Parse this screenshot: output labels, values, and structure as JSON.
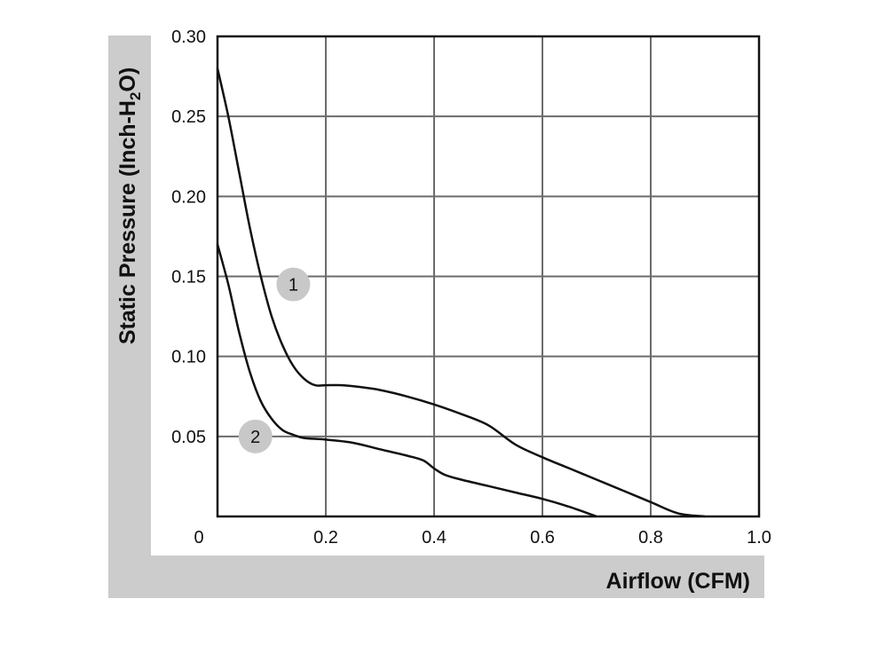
{
  "chart_data": {
    "type": "line",
    "xlabel": "Airflow (CFM)",
    "ylabel": {
      "prefix": "Static Pressure (Inch-H",
      "subscript": "2",
      "suffix": "O)"
    },
    "xlim": [
      0,
      1.0
    ],
    "ylim": [
      0,
      0.3
    ],
    "x_ticks": [
      {
        "value": 0,
        "label": "0"
      },
      {
        "value": 0.2,
        "label": "0.2"
      },
      {
        "value": 0.4,
        "label": "0.4"
      },
      {
        "value": 0.6,
        "label": "0.6"
      },
      {
        "value": 0.8,
        "label": "0.8"
      },
      {
        "value": 1.0,
        "label": "1.0"
      }
    ],
    "y_ticks": [
      {
        "value": 0.05,
        "label": "0.05"
      },
      {
        "value": 0.1,
        "label": "0.10"
      },
      {
        "value": 0.15,
        "label": "0.15"
      },
      {
        "value": 0.2,
        "label": "0.20"
      },
      {
        "value": 0.25,
        "label": "0.25"
      },
      {
        "value": 0.3,
        "label": "0.30"
      }
    ],
    "grid": true,
    "series": [
      {
        "name": "1",
        "marker_at": [
          0.14,
          0.145
        ],
        "points": [
          [
            0.0,
            0.28
          ],
          [
            0.02,
            0.25
          ],
          [
            0.04,
            0.215
          ],
          [
            0.06,
            0.18
          ],
          [
            0.08,
            0.15
          ],
          [
            0.1,
            0.125
          ],
          [
            0.12,
            0.107
          ],
          [
            0.14,
            0.094
          ],
          [
            0.16,
            0.086
          ],
          [
            0.18,
            0.082
          ],
          [
            0.2,
            0.082
          ],
          [
            0.23,
            0.082
          ],
          [
            0.26,
            0.081
          ],
          [
            0.3,
            0.079
          ],
          [
            0.35,
            0.075
          ],
          [
            0.4,
            0.07
          ],
          [
            0.45,
            0.064
          ],
          [
            0.5,
            0.057
          ],
          [
            0.55,
            0.045
          ],
          [
            0.6,
            0.037
          ],
          [
            0.65,
            0.03
          ],
          [
            0.7,
            0.023
          ],
          [
            0.75,
            0.016
          ],
          [
            0.8,
            0.009
          ],
          [
            0.85,
            0.002
          ],
          [
            0.9,
            0.0
          ]
        ]
      },
      {
        "name": "2",
        "marker_at": [
          0.07,
          0.05
        ],
        "points": [
          [
            0.0,
            0.17
          ],
          [
            0.02,
            0.145
          ],
          [
            0.04,
            0.115
          ],
          [
            0.06,
            0.09
          ],
          [
            0.08,
            0.072
          ],
          [
            0.1,
            0.061
          ],
          [
            0.12,
            0.054
          ],
          [
            0.14,
            0.051
          ],
          [
            0.16,
            0.049
          ],
          [
            0.2,
            0.048
          ],
          [
            0.25,
            0.046
          ],
          [
            0.3,
            0.042
          ],
          [
            0.35,
            0.038
          ],
          [
            0.38,
            0.035
          ],
          [
            0.4,
            0.03
          ],
          [
            0.42,
            0.026
          ],
          [
            0.45,
            0.023
          ],
          [
            0.5,
            0.019
          ],
          [
            0.55,
            0.015
          ],
          [
            0.6,
            0.011
          ],
          [
            0.65,
            0.006
          ],
          [
            0.7,
            0.0
          ]
        ]
      }
    ]
  },
  "colors": {
    "frame_band": "#cccccc",
    "grid": "#6b6b6b",
    "axes": "#111111",
    "curve": "#111111",
    "marker_fill": "#c8c8c8"
  }
}
